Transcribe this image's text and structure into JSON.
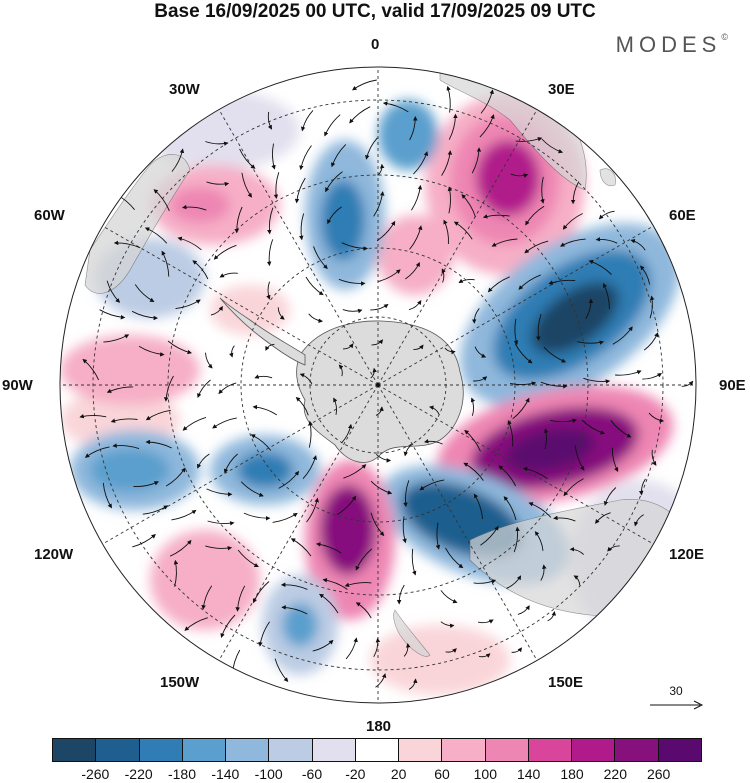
{
  "title": "Base 16/09/2025 00 UTC, valid 17/09/2025 09 UTC",
  "brand": "MODES",
  "brand_mark": "©",
  "longitude_labels": [
    "0",
    "30E",
    "60E",
    "90E",
    "120E",
    "150E",
    "180",
    "150W",
    "120W",
    "90W",
    "60W",
    "30W"
  ],
  "reference_vector": {
    "label": "30"
  },
  "colorbar": {
    "ticks": [
      "-260",
      "-220",
      "-180",
      "-140",
      "-100",
      "-60",
      "-20",
      "20",
      "60",
      "100",
      "140",
      "180",
      "220",
      "260"
    ],
    "colors": [
      "#1d4565",
      "#1f5f8f",
      "#2f7db4",
      "#5a9fcd",
      "#8fb8dc",
      "#bccce4",
      "#e2e0ee",
      "#ffffff",
      "#f9d5d9",
      "#f6afc6",
      "#ee86b3",
      "#d9459b",
      "#b11a8b",
      "#86117d",
      "#5a0a6e"
    ]
  }
}
